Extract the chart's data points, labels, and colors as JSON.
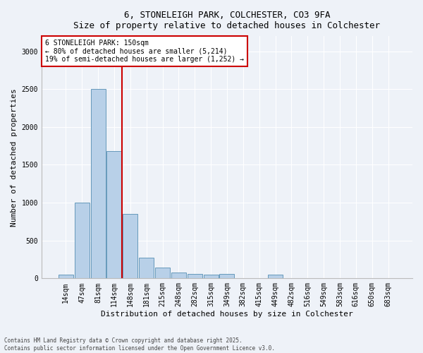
{
  "title_line1": "6, STONELEIGH PARK, COLCHESTER, CO3 9FA",
  "title_line2": "Size of property relative to detached houses in Colchester",
  "xlabel": "Distribution of detached houses by size in Colchester",
  "ylabel": "Number of detached properties",
  "categories": [
    "14sqm",
    "47sqm",
    "81sqm",
    "114sqm",
    "148sqm",
    "181sqm",
    "215sqm",
    "248sqm",
    "282sqm",
    "315sqm",
    "349sqm",
    "382sqm",
    "415sqm",
    "449sqm",
    "482sqm",
    "516sqm",
    "549sqm",
    "583sqm",
    "616sqm",
    "650sqm",
    "683sqm"
  ],
  "values": [
    50,
    1000,
    2500,
    1680,
    850,
    270,
    140,
    80,
    60,
    50,
    60,
    0,
    0,
    50,
    0,
    0,
    0,
    0,
    0,
    0,
    0
  ],
  "bar_color": "#b8d0e8",
  "bar_edge_color": "#6699bb",
  "red_line_label": "6 STONELEIGH PARK: 150sqm",
  "annotation_line2": "← 80% of detached houses are smaller (5,214)",
  "annotation_line3": "19% of semi-detached houses are larger (1,252) →",
  "vline_color": "#cc0000",
  "annotation_box_edgecolor": "#cc0000",
  "annotation_box_facecolor": "#ffffff",
  "vline_x": 3.5,
  "ylim": [
    0,
    3200
  ],
  "yticks": [
    0,
    500,
    1000,
    1500,
    2000,
    2500,
    3000
  ],
  "footnote_line1": "Contains HM Land Registry data © Crown copyright and database right 2025.",
  "footnote_line2": "Contains public sector information licensed under the Open Government Licence v3.0.",
  "background_color": "#eef2f8",
  "grid_color": "#ffffff",
  "title_fontsize": 9,
  "axis_label_fontsize": 8,
  "tick_fontsize": 7,
  "annotation_fontsize": 7
}
